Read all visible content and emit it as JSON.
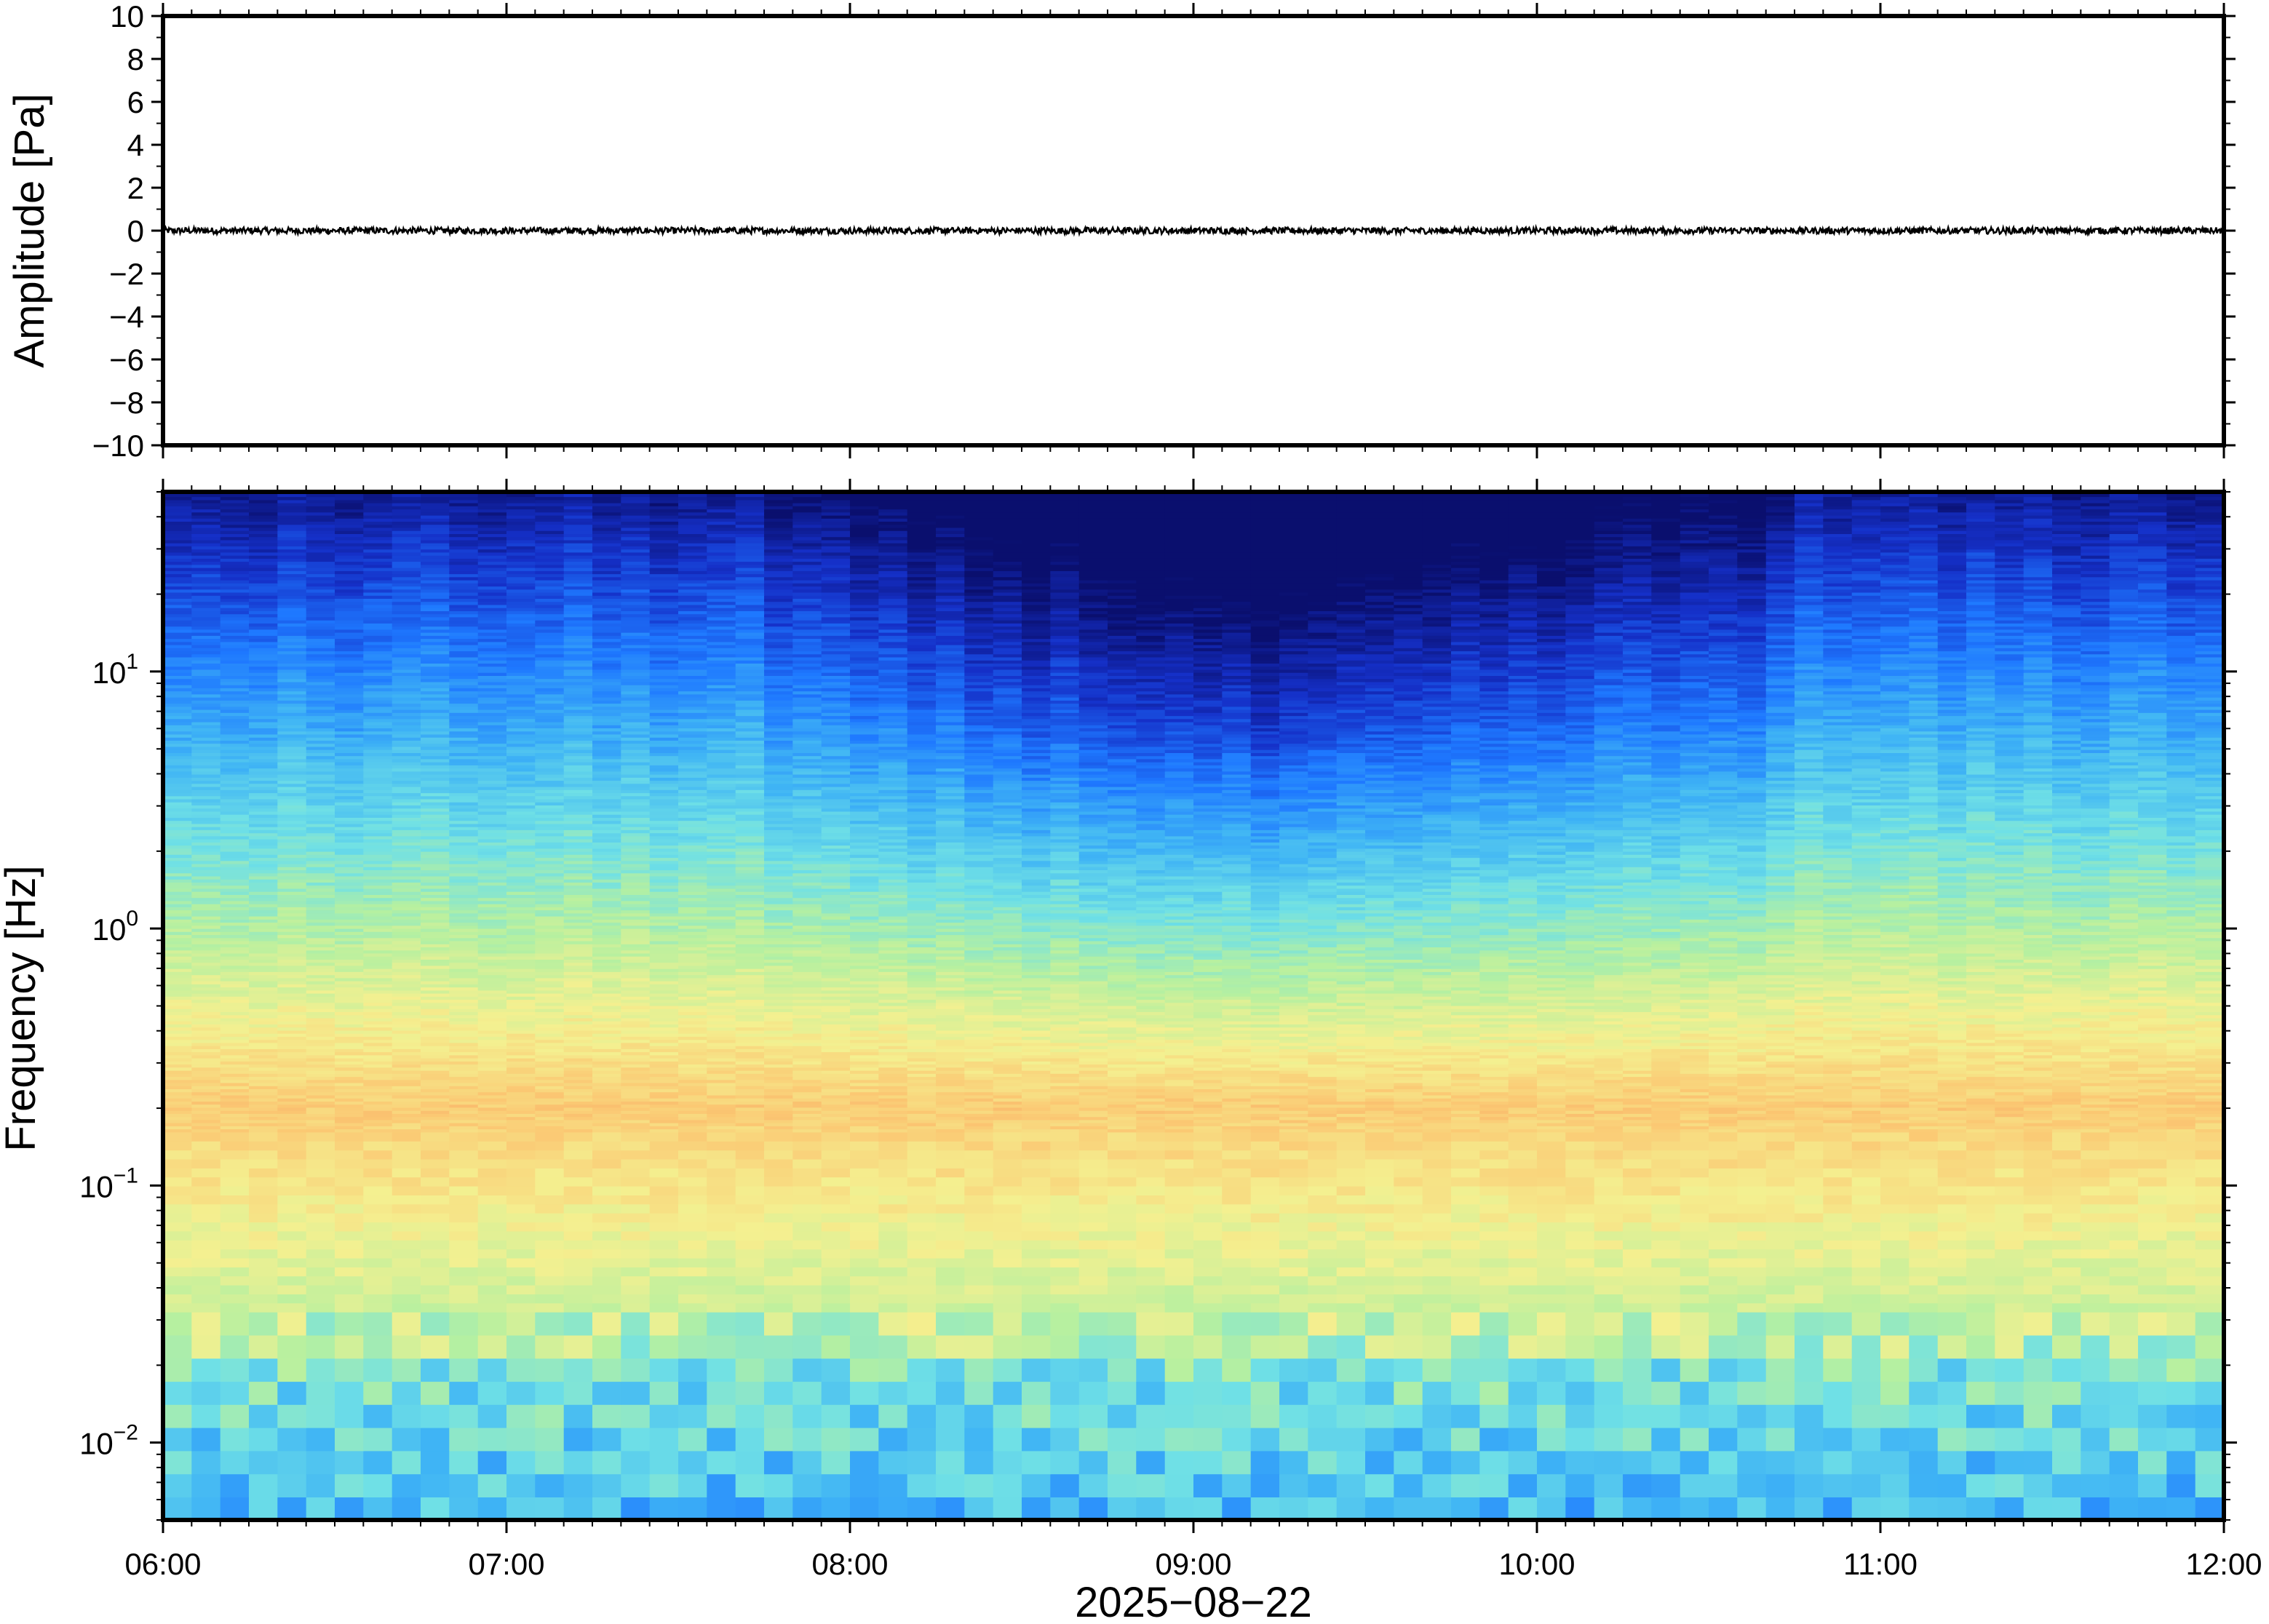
{
  "chart_data": [
    {
      "type": "line",
      "title": "",
      "ylabel": "Amplitude [Pa]",
      "ylim": [
        -10,
        10
      ],
      "yticks": [
        10,
        8,
        6,
        4,
        2,
        0,
        -2,
        -4,
        -6,
        -8,
        -10
      ],
      "ytick_labels": [
        "10",
        "8",
        "6",
        "4",
        "2",
        "0",
        "−2",
        "−4",
        "−6",
        "−8",
        "−10"
      ],
      "xlim": [
        "06:00",
        "12:00"
      ],
      "series": [
        {
          "values_description": null,
          "x": [
            "06:00",
            "12:00"
          ],
          "y": [
            0,
            0
          ],
          "noise_amplitude": 0.15
        }
      ],
      "color": "#000000"
    },
    {
      "type": "heatmap",
      "ylabel": "Frequency [Hz]",
      "yscale": "log",
      "ylim": [
        0.005,
        50
      ],
      "yticks": [
        10,
        1,
        0.1,
        0.01
      ],
      "ytick_labels": [
        {
          "base": "10",
          "exp": "1"
        },
        {
          "base": "10",
          "exp": "0"
        },
        {
          "base": "10",
          "exp": "−1"
        },
        {
          "base": "10",
          "exp": "−2"
        }
      ],
      "xlim": [
        "06:00",
        "12:00"
      ],
      "xticks": [
        "06:00",
        "07:00",
        "08:00",
        "09:00",
        "10:00",
        "11:00",
        "12:00"
      ],
      "xlabel": "2025−08−22",
      "colormap": [
        "#0a0f6e",
        "#1530c8",
        "#1e78ff",
        "#3fb4f5",
        "#6fe0e6",
        "#b6f0a0",
        "#f4f090",
        "#fbc873",
        "#f4905a"
      ],
      "peak_frequency_hz": 0.2
    }
  ]
}
